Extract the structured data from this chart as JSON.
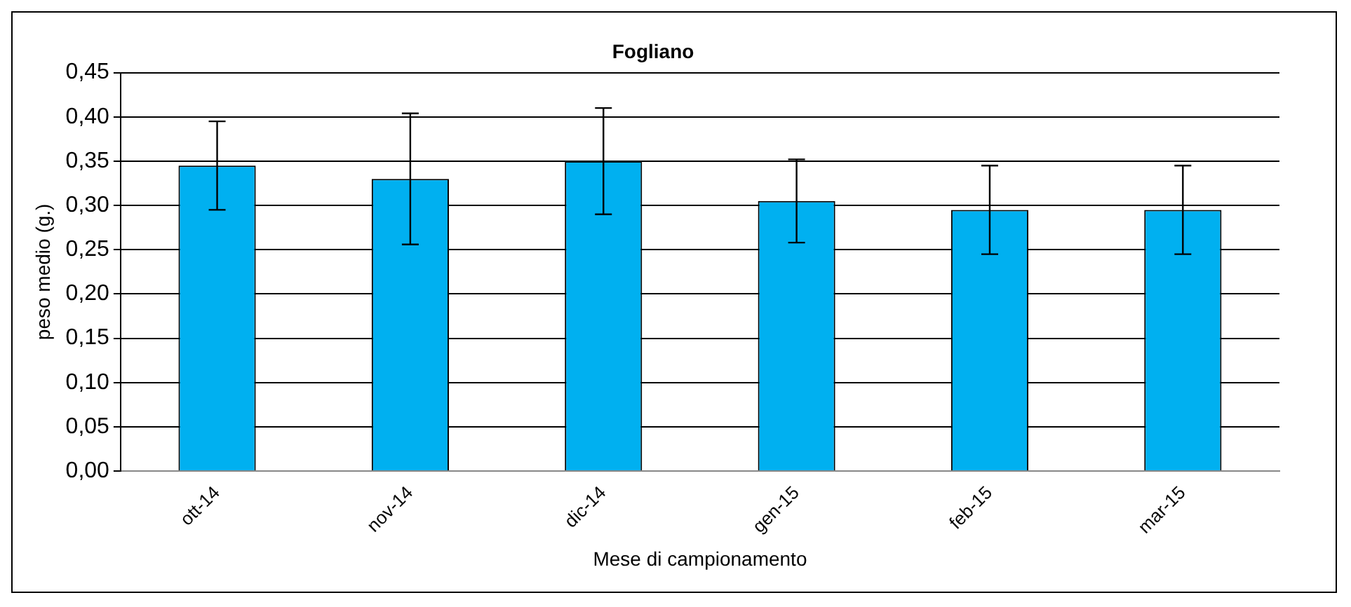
{
  "chart_data": {
    "type": "bar",
    "title": "Fogliano",
    "xlabel": "Mese di campionamento",
    "ylabel": "peso medio (g.)",
    "categories": [
      "ott-14",
      "nov-14",
      "dic-14",
      "gen-15",
      "feb-15",
      "mar-15"
    ],
    "values": [
      0.345,
      0.33,
      0.35,
      0.305,
      0.295,
      0.295
    ],
    "errors": [
      0.05,
      0.074,
      0.06,
      0.047,
      0.05,
      0.05
    ],
    "color": "#00b0f0",
    "ylim": [
      0,
      0.45
    ],
    "yticks": [
      {
        "value": 0,
        "label": "0,00"
      },
      {
        "value": 0.05,
        "label": "0,05"
      },
      {
        "value": 0.1,
        "label": "0,10"
      },
      {
        "value": 0.15,
        "label": "0,15"
      },
      {
        "value": 0.2,
        "label": "0,20"
      },
      {
        "value": 0.25,
        "label": "0,25"
      },
      {
        "value": 0.3,
        "label": "0,30"
      },
      {
        "value": 0.35,
        "label": "0,35"
      },
      {
        "value": 0.4,
        "label": "0,40"
      },
      {
        "value": 0.45,
        "label": "0,45"
      }
    ],
    "grid": "y",
    "legend": false
  }
}
